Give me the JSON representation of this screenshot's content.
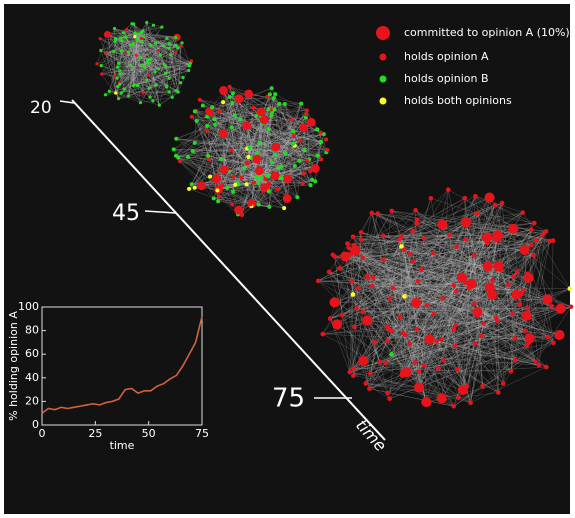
{
  "legend": [
    "committed to opinion A (10%)",
    "holds opinion A",
    "holds opinion B",
    "holds both opinions"
  ],
  "timeline": {
    "labels": [
      "20",
      "45",
      "75"
    ],
    "axis_label": "time"
  },
  "chart_data": {
    "type": "line",
    "xlabel": "time",
    "ylabel": "% holding opinion A",
    "x": [
      0,
      3,
      6,
      9,
      12,
      15,
      18,
      21,
      24,
      27,
      30,
      33,
      36,
      39,
      42,
      45,
      48,
      51,
      54,
      57,
      60,
      63,
      66,
      69,
      72,
      75
    ],
    "series": [
      {
        "name": "holding opinion A",
        "color": "#d2623c",
        "values": [
          10,
          14,
          13,
          15,
          14,
          15,
          16,
          17,
          18,
          17,
          19,
          20,
          22,
          30,
          31,
          27,
          29,
          29,
          33,
          35,
          39,
          42,
          50,
          60,
          70,
          92
        ]
      }
    ],
    "xlim": [
      0,
      75
    ],
    "ylim": [
      0,
      100
    ],
    "xticks": [
      0,
      25,
      50,
      75
    ],
    "yticks": [
      0,
      20,
      40,
      60,
      80,
      100
    ]
  }
}
